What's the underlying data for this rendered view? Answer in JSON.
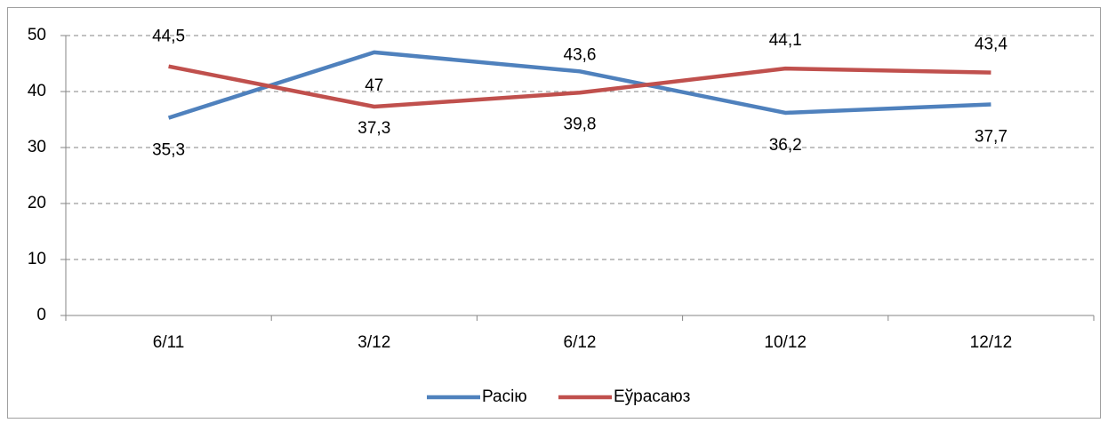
{
  "chart_data": {
    "type": "line",
    "categories": [
      "6/11",
      "3/12",
      "6/12",
      "10/12",
      "12/12"
    ],
    "series": [
      {
        "name": "Расію",
        "color": "#4f81bd",
        "values": [
          35.3,
          47,
          43.6,
          36.2,
          37.7
        ],
        "value_labels": [
          "35,3",
          "47",
          "43,6",
          "36,2",
          "37,7"
        ]
      },
      {
        "name": "Еўрасаюз",
        "color": "#c0504d",
        "values": [
          44.5,
          37.3,
          39.8,
          44.1,
          43.4
        ],
        "value_labels": [
          "44,5",
          "37,3",
          "39,8",
          "44,1",
          "43,4"
        ]
      }
    ],
    "ylim": [
      0,
      50
    ],
    "yticks": [
      0,
      10,
      20,
      30,
      40,
      50
    ],
    "grid": true,
    "legend": "bottom"
  }
}
